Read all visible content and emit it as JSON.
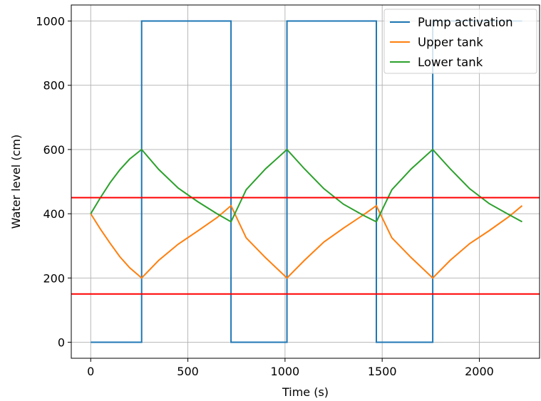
{
  "chart_data": {
    "type": "line",
    "xlabel": "Time (s)",
    "ylabel": "Water level (cm)",
    "xlim": [
      -100,
      2310
    ],
    "ylim": [
      -50,
      1050
    ],
    "xticks": [
      0,
      500,
      1000,
      1500,
      2000
    ],
    "yticks": [
      0,
      200,
      400,
      600,
      800,
      1000
    ],
    "grid": true,
    "legend_position": "top-right",
    "series": [
      {
        "name": "Pump activation",
        "color": "#1f77b4",
        "step": true,
        "x": [
          0,
          262,
          262,
          722,
          722,
          1010,
          1010,
          1470,
          1470,
          1760,
          1760,
          2220
        ],
        "y": [
          0,
          0,
          1000,
          1000,
          0,
          0,
          1000,
          1000,
          0,
          0,
          1000,
          1000
        ]
      },
      {
        "name": "Upper tank",
        "color": "#ff7f0e",
        "x": [
          0,
          50,
          100,
          150,
          200,
          262,
          350,
          450,
          550,
          650,
          722,
          800,
          900,
          1010,
          1100,
          1200,
          1300,
          1400,
          1470,
          1550,
          1650,
          1760,
          1850,
          1950,
          2050,
          2150,
          2220
        ],
        "y": [
          400,
          352,
          308,
          266,
          232,
          200,
          255,
          305,
          346,
          388,
          425,
          325,
          263,
          200,
          255,
          312,
          355,
          395,
          425,
          325,
          263,
          200,
          255,
          307,
          347,
          390,
          425
        ]
      },
      {
        "name": "Lower tank",
        "color": "#2ca02c",
        "x": [
          0,
          50,
          100,
          150,
          200,
          262,
          350,
          450,
          550,
          650,
          722,
          800,
          900,
          1010,
          1100,
          1200,
          1300,
          1400,
          1470,
          1550,
          1650,
          1760,
          1850,
          1950,
          2050,
          2150,
          2220
        ],
        "y": [
          400,
          450,
          497,
          537,
          570,
          600,
          538,
          480,
          438,
          400,
          375,
          475,
          540,
          600,
          540,
          478,
          430,
          396,
          375,
          475,
          540,
          600,
          540,
          478,
          432,
          398,
          375
        ]
      },
      {
        "color": "#ff0000",
        "hline": true,
        "x": [
          -100,
          2310
        ],
        "y": [
          450,
          450
        ]
      },
      {
        "color": "#ff0000",
        "hline": true,
        "x": [
          -100,
          2310
        ],
        "y": [
          150,
          150
        ]
      }
    ]
  }
}
